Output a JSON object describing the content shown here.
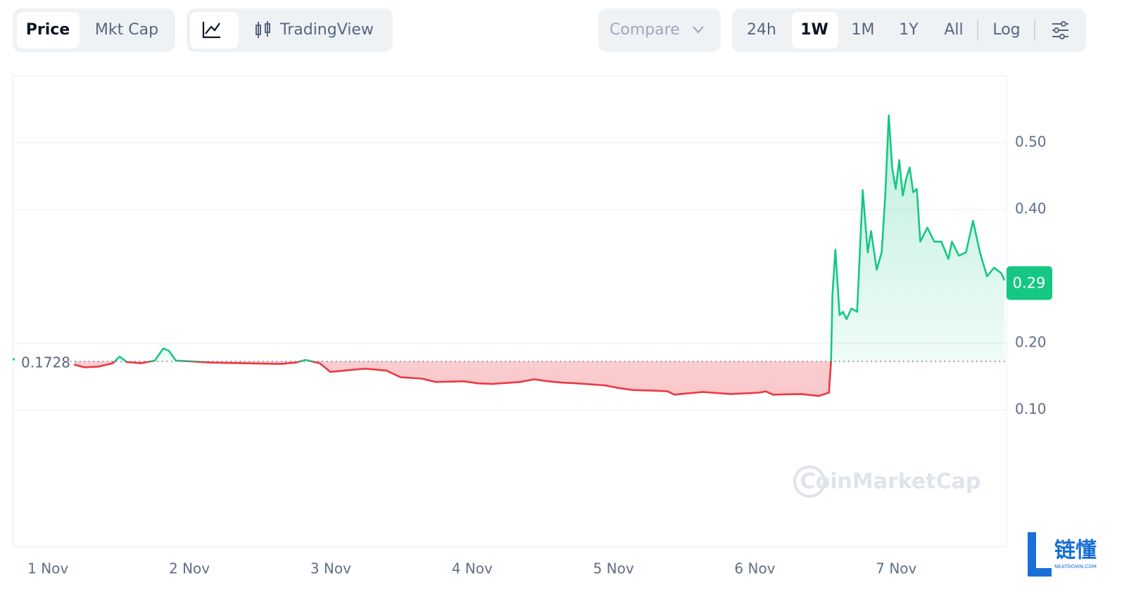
{
  "toolbar": {
    "price": "Price",
    "mkt_cap": "Mkt Cap",
    "tradingview": "TradingView",
    "compare": "Compare",
    "ranges": [
      "24h",
      "1W",
      "1M",
      "1Y",
      "All"
    ],
    "log": "Log"
  },
  "watermark": "CoinMarketCap",
  "logo": {
    "name": "链懂",
    "site": "NEATDOWN.COM"
  },
  "chart_data": {
    "type": "area",
    "x": [
      1.184,
      1.258,
      1.358,
      1.457,
      1.507,
      1.556,
      1.656,
      1.755,
      1.815,
      1.854,
      1.904,
      2.003,
      2.153,
      2.401,
      2.649,
      2.749,
      2.823,
      2.923,
      2.997,
      3.096,
      3.245,
      3.394,
      3.494,
      3.643,
      3.742,
      3.941,
      4.04,
      4.14,
      4.338,
      4.438,
      4.537,
      4.636,
      4.736,
      4.934,
      5.034,
      5.133,
      5.282,
      5.382,
      5.431,
      5.63,
      5.829,
      6.027,
      6.077,
      6.127,
      6.325,
      6.45,
      6.524,
      6.539,
      6.549,
      6.569,
      6.599,
      6.623,
      6.648,
      6.683,
      6.723,
      6.763,
      6.798,
      6.822,
      6.862,
      6.897,
      6.922,
      6.947,
      6.971,
      6.996,
      7.021,
      7.046,
      7.071,
      7.095,
      7.12,
      7.145,
      7.17,
      7.22,
      7.269,
      7.319,
      7.369,
      7.394,
      7.443,
      7.493,
      7.543,
      7.592,
      7.642,
      7.692,
      7.742,
      7.766
    ],
    "values": [
      0.168,
      0.164,
      0.165,
      0.17,
      0.18,
      0.172,
      0.17,
      0.174,
      0.192,
      0.189,
      0.174,
      0.173,
      0.171,
      0.17,
      0.169,
      0.171,
      0.175,
      0.17,
      0.157,
      0.159,
      0.162,
      0.159,
      0.149,
      0.147,
      0.142,
      0.143,
      0.14,
      0.139,
      0.142,
      0.146,
      0.143,
      0.141,
      0.14,
      0.137,
      0.133,
      0.13,
      0.129,
      0.128,
      0.123,
      0.127,
      0.124,
      0.126,
      0.128,
      0.123,
      0.124,
      0.121,
      0.126,
      0.173,
      0.273,
      0.34,
      0.242,
      0.247,
      0.236,
      0.252,
      0.247,
      0.429,
      0.336,
      0.368,
      0.31,
      0.336,
      0.421,
      0.541,
      0.463,
      0.431,
      0.474,
      0.421,
      0.447,
      0.463,
      0.426,
      0.431,
      0.352,
      0.373,
      0.352,
      0.352,
      0.326,
      0.352,
      0.331,
      0.336,
      0.383,
      0.336,
      0.3,
      0.313,
      0.305,
      0.294
    ],
    "reference_value": 0.1728,
    "current_value": 0.29,
    "up_color": "#16c784",
    "down_color": "#ea3943",
    "xlim": [
      0.75,
      7.78
    ],
    "xticks": [
      {
        "value": 1,
        "label": "1 Nov"
      },
      {
        "value": 2,
        "label": "2 Nov"
      },
      {
        "value": 3,
        "label": "3 Nov"
      },
      {
        "value": 4,
        "label": "4 Nov"
      },
      {
        "value": 5,
        "label": "5 Nov"
      },
      {
        "value": 6,
        "label": "6 Nov"
      },
      {
        "value": 7,
        "label": "7 Nov"
      }
    ],
    "ylim": [
      -0.105,
      0.6
    ],
    "yticks": [
      {
        "value": 0.1,
        "label": "0.10"
      },
      {
        "value": 0.2,
        "label": "0.20"
      },
      {
        "value": 0.4,
        "label": "0.40"
      },
      {
        "value": 0.5,
        "label": "0.50"
      }
    ],
    "grid": true
  }
}
